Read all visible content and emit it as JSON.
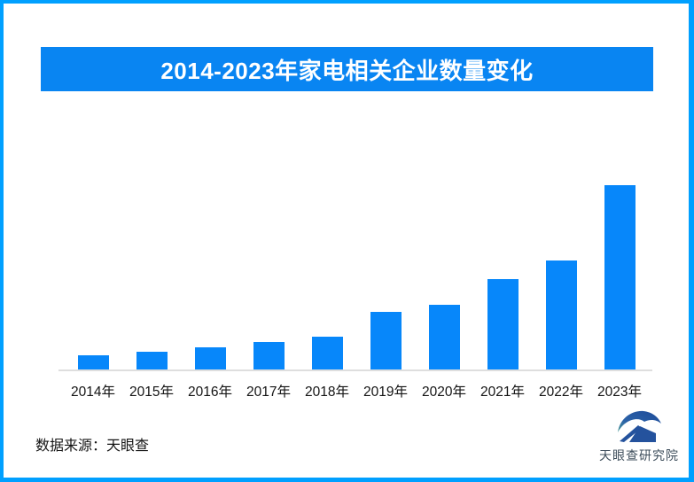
{
  "title": "2014-2023年家电相关企业数量变化",
  "source_note": "数据来源：天眼查",
  "brand": {
    "name": "天眼查研究院",
    "logo_icon": "tianyancha-eye-logo"
  },
  "colors": {
    "banner_background": "#0985F2",
    "bar": "#0787FA",
    "frame_border": "#00A0FF",
    "axis_line": "#DEDEDE",
    "label_text": "#141414",
    "title_text": "#FFFFFF",
    "logo_blue": "#24529D",
    "logo_teal": "#4E9E97",
    "brand_text": "#3D4D5B"
  },
  "chart_data": {
    "type": "bar",
    "title": "2014-2023年家电相关企业数量变化",
    "categories": [
      "2014年",
      "2015年",
      "2016年",
      "2017年",
      "2018年",
      "2019年",
      "2020年",
      "2021年",
      "2022年",
      "2023年"
    ],
    "values": [
      16,
      20,
      25,
      31,
      37,
      65,
      73,
      102,
      123,
      208
    ],
    "values_note": "relative bar heights in screenshot pixels; no numeric y-axis or data labels are shown in the chart",
    "xlabel": "",
    "ylabel": "",
    "grid": false,
    "legend": false,
    "bar_color": "#0787FA",
    "baseline_axis": "light gray horizontal line at bottom only"
  }
}
